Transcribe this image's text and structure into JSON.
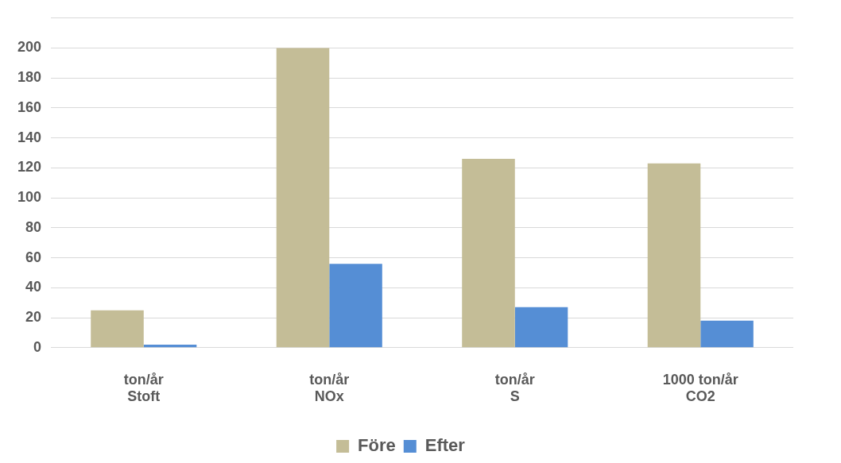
{
  "chart_data": {
    "type": "bar",
    "categories": [
      "ton/år\nStoft",
      "ton/år\nNOx",
      "ton/år\nS",
      "1000 ton/år\nCO2"
    ],
    "series": [
      {
        "name": "Före",
        "color": "#c4bd97",
        "values": [
          25,
          200,
          126,
          123
        ]
      },
      {
        "name": "Efter",
        "color": "#558ed5",
        "values": [
          2,
          56,
          27,
          18
        ]
      }
    ],
    "ylim": [
      0,
      220
    ],
    "yticks": [
      0,
      20,
      40,
      60,
      80,
      100,
      120,
      140,
      160,
      180,
      200,
      {
        "value": 220,
        "label": null
      }
    ],
    "grid": "y",
    "legend": "bottom"
  }
}
